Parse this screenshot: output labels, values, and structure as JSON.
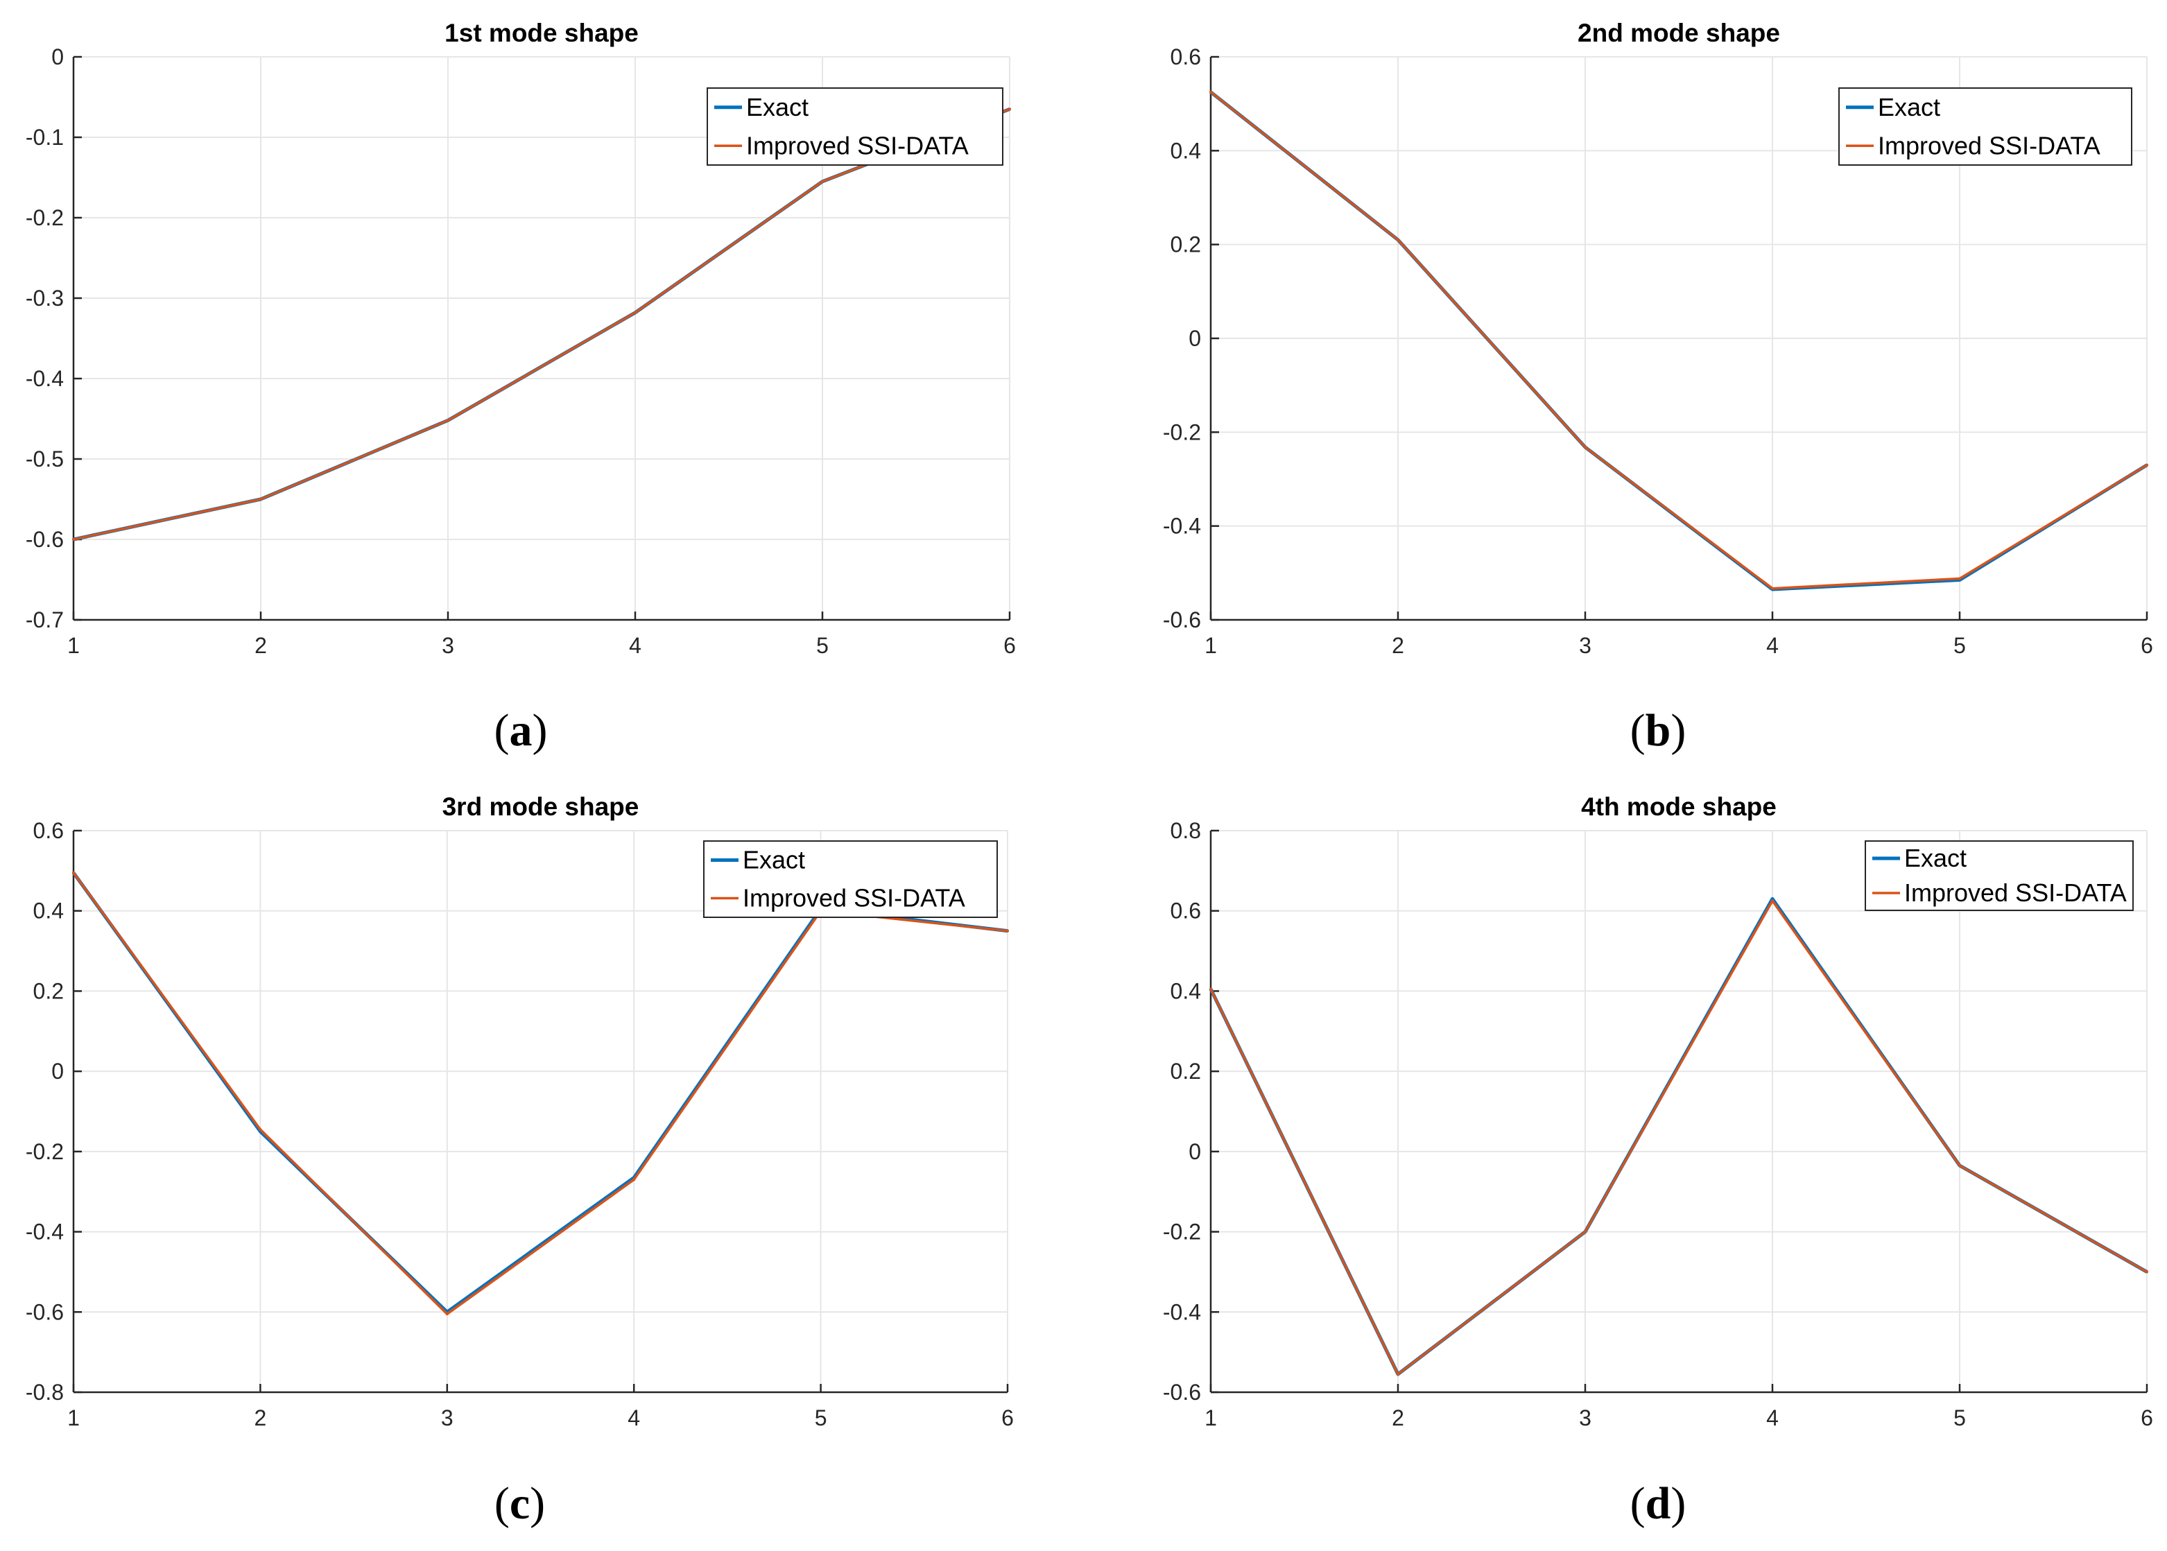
{
  "colors": {
    "exact": "#0072BD",
    "improved": "#D95319",
    "grid": "#e6e6e6",
    "axis": "#262626"
  },
  "chart_data": [
    {
      "type": "line",
      "title": "1st mode shape",
      "caption": "a",
      "xlabel": "",
      "ylabel": "",
      "xlim": [
        1,
        6
      ],
      "ylim": [
        -0.7,
        0
      ],
      "x_ticks": [
        1,
        2,
        3,
        4,
        5,
        6
      ],
      "y_ticks": [
        -0.7,
        -0.6,
        -0.5,
        -0.4,
        -0.3,
        -0.2,
        -0.1,
        0
      ],
      "x_tick_labels": [
        "1",
        "2",
        "3",
        "4",
        "5",
        "6"
      ],
      "y_tick_labels": [
        "-0.7",
        "-0.6",
        "-0.5",
        "-0.4",
        "-0.3",
        "-0.2",
        "-0.1",
        "0"
      ],
      "legend": "top-right",
      "x": [
        1,
        2,
        3,
        4,
        5,
        6
      ],
      "series": [
        {
          "name": "Exact",
          "values": [
            -0.6,
            -0.55,
            -0.452,
            -0.318,
            -0.155,
            -0.065
          ]
        },
        {
          "name": "Improved SSI-DATA",
          "values": [
            -0.6,
            -0.55,
            -0.452,
            -0.318,
            -0.155,
            -0.065
          ]
        }
      ]
    },
    {
      "type": "line",
      "title": "2nd mode shape",
      "caption": "b",
      "xlabel": "",
      "ylabel": "",
      "xlim": [
        1,
        6
      ],
      "ylim": [
        -0.6,
        0.6
      ],
      "x_ticks": [
        1,
        2,
        3,
        4,
        5,
        6
      ],
      "y_ticks": [
        -0.6,
        -0.4,
        -0.2,
        0,
        0.2,
        0.4,
        0.6
      ],
      "x_tick_labels": [
        "1",
        "2",
        "3",
        "4",
        "5",
        "6"
      ],
      "y_tick_labels": [
        "-0.6",
        "-0.4",
        "-0.2",
        "0",
        "0.2",
        "0.4",
        "0.6"
      ],
      "legend": "top-right",
      "x": [
        1,
        2,
        3,
        4,
        5,
        6
      ],
      "series": [
        {
          "name": "Exact",
          "values": [
            0.525,
            0.21,
            -0.232,
            -0.535,
            -0.515,
            -0.27
          ]
        },
        {
          "name": "Improved SSI-DATA",
          "values": [
            0.525,
            0.21,
            -0.232,
            -0.533,
            -0.512,
            -0.27
          ]
        }
      ]
    },
    {
      "type": "line",
      "title": "3rd mode shape",
      "caption": "c",
      "xlabel": "",
      "ylabel": "",
      "xlim": [
        1,
        6
      ],
      "ylim": [
        -0.8,
        0.6
      ],
      "x_ticks": [
        1,
        2,
        3,
        4,
        5,
        6
      ],
      "y_ticks": [
        -0.8,
        -0.6,
        -0.4,
        -0.2,
        0,
        0.2,
        0.4,
        0.6
      ],
      "x_tick_labels": [
        "1",
        "2",
        "3",
        "4",
        "5",
        "6"
      ],
      "y_tick_labels": [
        "-0.8",
        "-0.6",
        "-0.4",
        "-0.2",
        "0",
        "0.2",
        "0.4",
        "0.6"
      ],
      "legend": "top-right",
      "x": [
        1,
        2,
        3,
        4,
        5,
        6
      ],
      "series": [
        {
          "name": "Exact",
          "values": [
            0.495,
            -0.15,
            -0.6,
            -0.265,
            0.405,
            0.35
          ]
        },
        {
          "name": "Improved SSI-DATA",
          "values": [
            0.495,
            -0.145,
            -0.605,
            -0.27,
            0.4,
            0.35
          ]
        }
      ]
    },
    {
      "type": "line",
      "title": "4th mode shape",
      "caption": "d",
      "xlabel": "",
      "ylabel": "",
      "xlim": [
        1,
        6
      ],
      "ylim": [
        -0.6,
        0.8
      ],
      "x_ticks": [
        1,
        2,
        3,
        4,
        5,
        6
      ],
      "y_ticks": [
        -0.6,
        -0.4,
        -0.2,
        0,
        0.2,
        0.4,
        0.6,
        0.8
      ],
      "x_tick_labels": [
        "1",
        "2",
        "3",
        "4",
        "5",
        "6"
      ],
      "y_tick_labels": [
        "-0.6",
        "-0.4",
        "-0.2",
        "0",
        "0.2",
        "0.4",
        "0.6",
        "0.8"
      ],
      "legend": "top-right",
      "x": [
        1,
        2,
        3,
        4,
        5,
        6
      ],
      "series": [
        {
          "name": "Exact",
          "values": [
            0.405,
            -0.555,
            -0.2,
            0.63,
            -0.035,
            -0.3
          ]
        },
        {
          "name": "Improved SSI-DATA",
          "values": [
            0.405,
            -0.555,
            -0.2,
            0.625,
            -0.035,
            -0.3
          ]
        }
      ]
    }
  ]
}
